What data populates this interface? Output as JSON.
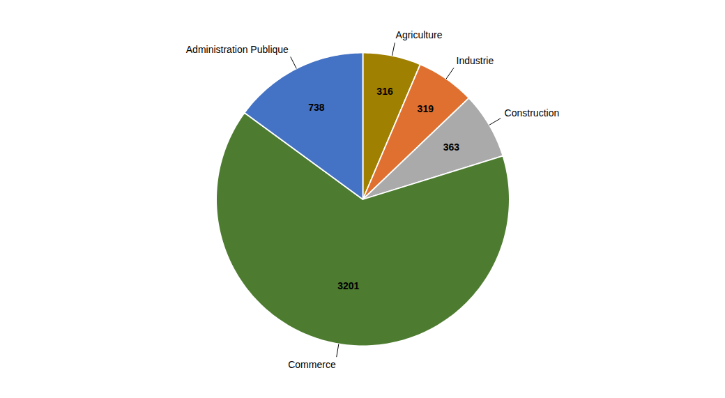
{
  "chart_data": {
    "type": "pie",
    "categories": [
      "Agriculture",
      "Industrie",
      "Construction",
      "Commerce",
      "Administration Publique"
    ],
    "values": [
      316,
      319,
      363,
      3201,
      738
    ],
    "colors": [
      "#a08000",
      "#e07030",
      "#aaaaaa",
      "#4d7c30",
      "#4472c4"
    ],
    "data_labels": true,
    "tick_labels": false
  }
}
